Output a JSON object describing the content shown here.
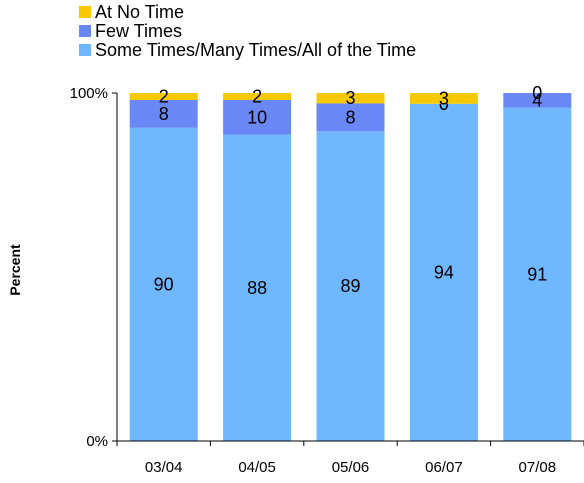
{
  "chart_data": {
    "type": "bar",
    "stacked": true,
    "percent_stacked": true,
    "categories": [
      "03/04",
      "04/05",
      "05/06",
      "06/07",
      "07/08"
    ],
    "series": [
      {
        "name": "Some Times/Many Times/All of the Time",
        "values": [
          90,
          88,
          89,
          94,
          91
        ],
        "labels": [
          "90",
          "88",
          "89",
          "94",
          "91"
        ],
        "color": "#6fb8ff"
      },
      {
        "name": "Few Times",
        "values": [
          8,
          10,
          8,
          0,
          4
        ],
        "labels": [
          "8",
          "10",
          "8",
          "0",
          "4"
        ],
        "color": "#6987f5"
      },
      {
        "name": "At No Time",
        "values": [
          2,
          2,
          3,
          3,
          0
        ],
        "labels": [
          "2",
          "2",
          "3",
          "3",
          "0"
        ],
        "color": "#f6c800"
      }
    ],
    "ylabel": "Percent",
    "yticks": [
      "0%",
      "100%"
    ],
    "ylim": [
      0,
      100
    ],
    "legend_position": "top-left",
    "grid": false
  }
}
